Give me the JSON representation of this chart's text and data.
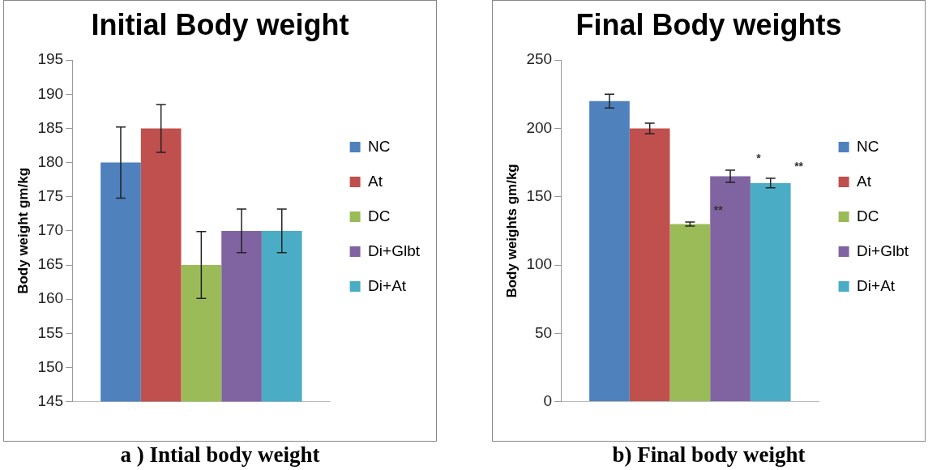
{
  "chart_data": [
    {
      "type": "bar",
      "title": "Initial Body weight",
      "ylabel": "Body weight gm/kg",
      "categories": [
        null
      ],
      "series": [
        {
          "name": "NC",
          "color": "#4f81bd",
          "values": [
            180
          ],
          "errors": [
            5.2
          ]
        },
        {
          "name": "At",
          "color": "#c0504d",
          "values": [
            185
          ],
          "errors": [
            3.5
          ]
        },
        {
          "name": "DC",
          "color": "#9bbb59",
          "values": [
            165
          ],
          "errors": [
            4.9
          ]
        },
        {
          "name": "Di+Glbt",
          "color": "#8064a2",
          "values": [
            170
          ],
          "errors": [
            3.2
          ]
        },
        {
          "name": "Di+At",
          "color": "#4bacc6",
          "values": [
            170
          ],
          "errors": [
            3.2
          ]
        }
      ],
      "ylim": [
        145,
        195
      ],
      "yticks": [
        145,
        150,
        155,
        160,
        165,
        170,
        175,
        180,
        185,
        190,
        195
      ],
      "grid": false,
      "legend": "right",
      "annotations": [
        "a ) Intial body weight"
      ]
    },
    {
      "type": "bar",
      "title": "Final Body weights",
      "ylabel": "Body weights gm/kg",
      "categories": [
        null
      ],
      "series": [
        {
          "name": "NC",
          "color": "#4f81bd",
          "values": [
            220
          ],
          "errors": [
            5
          ]
        },
        {
          "name": "At",
          "color": "#c0504d",
          "values": [
            200
          ],
          "errors": [
            3.8
          ]
        },
        {
          "name": "DC",
          "color": "#9bbb59",
          "values": [
            130
          ],
          "errors": [
            1.5
          ]
        },
        {
          "name": "Di+Glbt",
          "color": "#8064a2",
          "values": [
            165
          ],
          "errors": [
            4.5
          ]
        },
        {
          "name": "Di+At",
          "color": "#4bacc6",
          "values": [
            160
          ],
          "errors": [
            3.5
          ]
        }
      ],
      "ylim": [
        0,
        250
      ],
      "yticks": [
        0,
        50,
        100,
        150,
        200,
        250
      ],
      "grid": false,
      "legend": "right",
      "annotations": [
        "**",
        "*",
        "**",
        "b) Final body weight"
      ]
    }
  ]
}
